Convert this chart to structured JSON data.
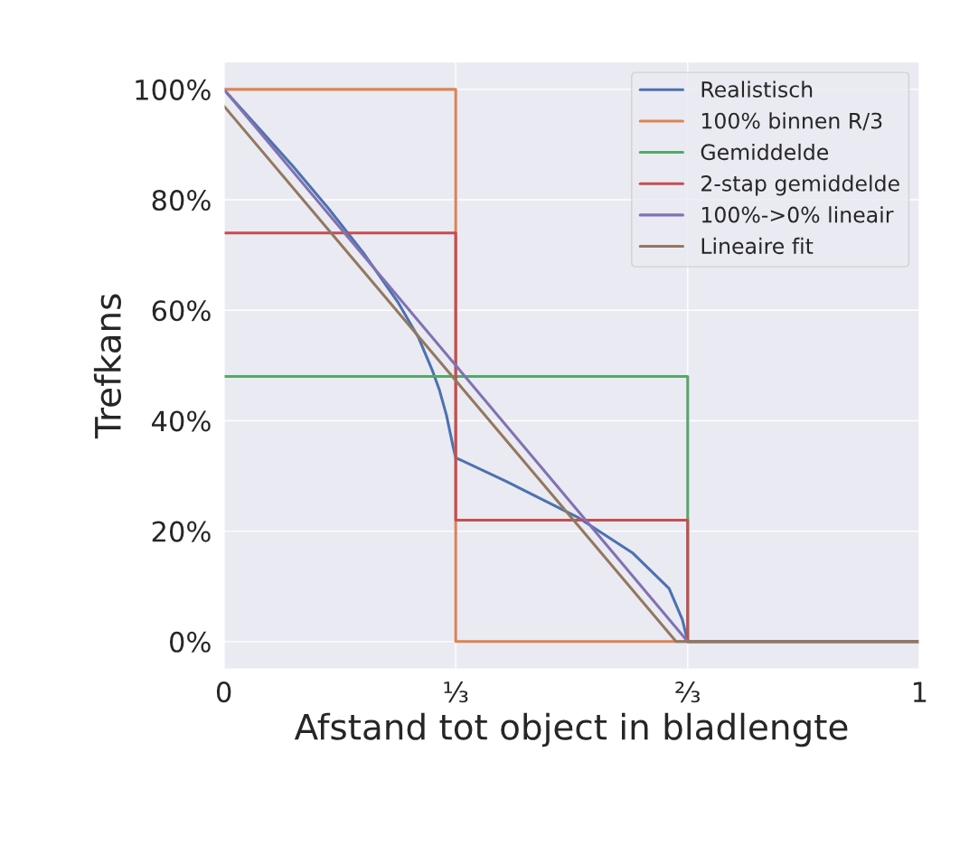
{
  "chart_data": {
    "type": "line",
    "xlabel": "Afstand tot object in bladlengte",
    "ylabel": "Trefkans",
    "xlim": [
      0,
      1
    ],
    "ylim": [
      -5,
      105
    ],
    "xticks": [
      0,
      {
        "value": 0.3333,
        "label": "⅓"
      },
      {
        "value": 0.6667,
        "label": "⅔"
      },
      1
    ],
    "yticks": [
      {
        "value": 0,
        "label": "0%"
      },
      {
        "value": 20,
        "label": "20%"
      },
      {
        "value": 40,
        "label": "40%"
      },
      {
        "value": 60,
        "label": "60%"
      },
      {
        "value": 80,
        "label": "80%"
      },
      {
        "value": 100,
        "label": "100%"
      }
    ],
    "grid": true,
    "legend": "top right",
    "marker": "none",
    "line_style": "solid",
    "series": [
      {
        "name": "Realistisch",
        "color": "#4c72b0",
        "x": [
          0,
          0.05,
          0.1,
          0.15,
          0.2,
          0.25,
          0.28,
          0.3,
          0.31,
          0.32,
          0.33,
          0.3333,
          0.406,
          0.51,
          0.588,
          0.64,
          0.659,
          0.6667,
          1
        ],
        "values": [
          100,
          93,
          86,
          78.5,
          70.5,
          61.5,
          55,
          49,
          45.5,
          41,
          35,
          33.3,
          29,
          22.4,
          16,
          9.6,
          4,
          0,
          0
        ]
      },
      {
        "name": "100% binnen R/3",
        "color": "#dd8452",
        "x": [
          0,
          0.3333,
          0.3333,
          1
        ],
        "values": [
          100,
          100,
          0,
          0
        ]
      },
      {
        "name": "Gemiddelde",
        "color": "#55a868",
        "x": [
          0,
          0.6667,
          0.6667,
          1
        ],
        "values": [
          48,
          48,
          0,
          0
        ]
      },
      {
        "name": "2-stap gemiddelde",
        "color": "#c44e52",
        "x": [
          0,
          0.3333,
          0.3333,
          0.6667,
          0.6667,
          1
        ],
        "values": [
          74,
          74,
          22,
          22,
          0,
          0
        ]
      },
      {
        "name": "100%->0% lineair",
        "color": "#8172b3",
        "x": [
          0,
          0.6667,
          1
        ],
        "values": [
          100,
          0,
          0
        ]
      },
      {
        "name": "Lineaire fit",
        "color": "#937860",
        "x": [
          0,
          0.65,
          1
        ],
        "values": [
          97,
          0,
          0
        ]
      }
    ]
  }
}
